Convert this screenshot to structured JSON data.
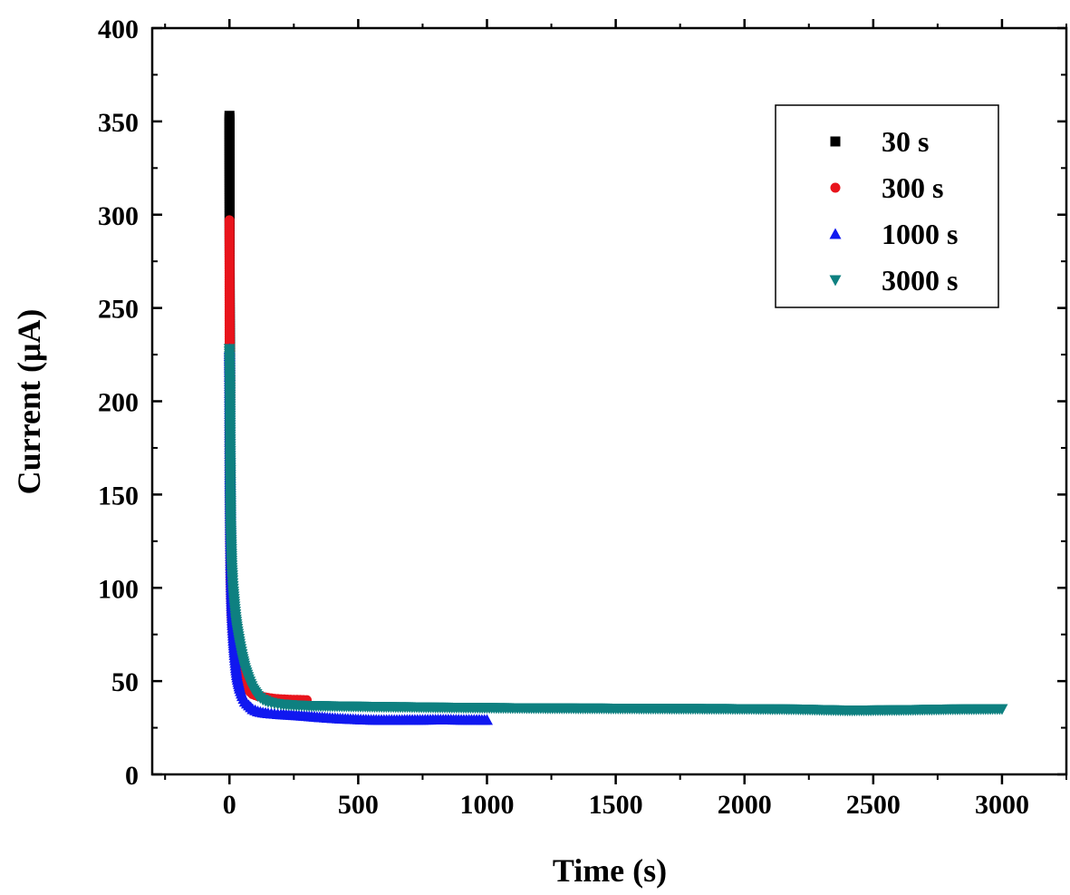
{
  "chart_data": {
    "type": "scatter",
    "xlabel": "Time (s)",
    "ylabel": "Current (μA)",
    "xlim": [
      -300,
      3250
    ],
    "ylim": [
      0,
      400
    ],
    "xticks": [
      0,
      500,
      1000,
      1500,
      2000,
      2500,
      3000
    ],
    "yticks": [
      0,
      50,
      100,
      150,
      200,
      250,
      300,
      350,
      400
    ],
    "grid": false,
    "legend_position": "top-right",
    "series": [
      {
        "name": "30 s",
        "color": "#000000",
        "marker": "square",
        "x": [
          0,
          1,
          2,
          3,
          4,
          5,
          6,
          8,
          10,
          12,
          15,
          18,
          21,
          24,
          27,
          30
        ],
        "y": [
          353,
          255,
          192,
          159,
          140,
          124,
          115,
          105,
          95,
          88,
          80,
          73,
          68,
          64,
          61,
          58
        ]
      },
      {
        "name": "300 s",
        "color": "#e8141c",
        "marker": "circle",
        "x": [
          0,
          1,
          2,
          3,
          4,
          5,
          7,
          9,
          12,
          15,
          20,
          25,
          30,
          40,
          50,
          60,
          75,
          90,
          110,
          130,
          150,
          175,
          200,
          225,
          250,
          275,
          300
        ],
        "y": [
          297,
          187,
          146,
          126,
          111,
          102,
          92,
          85,
          78,
          73,
          67,
          62,
          58,
          53,
          50,
          47,
          45,
          43,
          42,
          41.5,
          41,
          40.5,
          40.3,
          40.1,
          40,
          39.9,
          39.8
        ]
      },
      {
        "name": "1000 s",
        "color": "#1018f0",
        "marker": "triangle-up",
        "x": [
          0,
          1,
          2,
          3,
          4,
          5,
          7,
          9,
          12,
          15,
          20,
          25,
          30,
          40,
          50,
          60,
          75,
          90,
          110,
          130,
          150,
          175,
          200,
          250,
          300,
          350,
          400,
          450,
          500,
          550,
          600,
          650,
          700,
          750,
          800,
          850,
          900,
          950,
          1000
        ],
        "y": [
          228,
          197,
          163,
          141,
          126,
          112,
          99,
          89,
          80,
          73,
          64,
          57,
          52,
          46,
          42,
          39,
          37,
          35,
          33.8,
          33.2,
          32.8,
          32.5,
          32.2,
          31.8,
          31.3,
          30.7,
          30.2,
          29.8,
          29.5,
          29.3,
          29.2,
          29.2,
          29.3,
          29.3,
          29.4,
          29.4,
          29.3,
          29.3,
          29.2
        ]
      },
      {
        "name": "3000 s",
        "color": "#0e8080",
        "marker": "triangle-down",
        "x": [
          0,
          1,
          2,
          3,
          4,
          5,
          7,
          9,
          12,
          15,
          20,
          25,
          30,
          40,
          50,
          60,
          75,
          90,
          110,
          130,
          150,
          175,
          200,
          250,
          300,
          400,
          500,
          600,
          700,
          800,
          1000,
          1200,
          1400,
          1600,
          1800,
          2000,
          2200,
          2400,
          2600,
          2800,
          3000
        ],
        "y": [
          228,
          219,
          206,
          172,
          149,
          133,
          122,
          112,
          104,
          98,
          90,
          83,
          78,
          70,
          63,
          57,
          51,
          46,
          42,
          40,
          38.8,
          38,
          37.5,
          37,
          36.7,
          36.5,
          36.3,
          36.1,
          36,
          35.8,
          35.6,
          35.4,
          35.3,
          35.2,
          35.1,
          35,
          34.8,
          34.2,
          34.4,
          34.8,
          35
        ]
      }
    ]
  }
}
